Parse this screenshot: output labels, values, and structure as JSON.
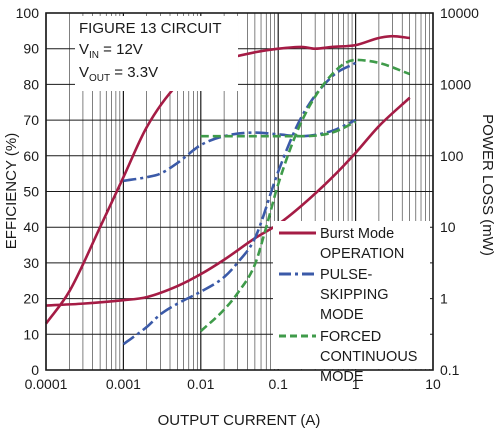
{
  "chart_data": {
    "type": "line",
    "xlabel": "OUTPUT CURRENT (A)",
    "ylabel": "EFFICIENCY (%)",
    "y2label": "POWER LOSS (mW)",
    "x_scale": "log",
    "xlim": [
      0.0001,
      10
    ],
    "ylim": [
      0,
      100
    ],
    "y2_scale": "log",
    "y2lim": [
      0.1,
      10000
    ],
    "x_ticks": [
      "0.0001",
      "0.001",
      "0.01",
      "0.1",
      "1",
      "10"
    ],
    "y_ticks": [
      "0",
      "10",
      "20",
      "30",
      "40",
      "50",
      "60",
      "70",
      "80",
      "90",
      "100"
    ],
    "y2_ticks": [
      "0.1",
      "1",
      "10",
      "100",
      "1000",
      "10000"
    ],
    "grid": true,
    "annotation": {
      "line1": "FIGURE 13 CIRCUIT",
      "vin_main": "V",
      "vin_sub": "IN",
      "vin_value": " = 12V",
      "vout_main": "V",
      "vout_sub": "OUT",
      "vout_value": " = 3.3V"
    },
    "legend": {
      "position": "bottom-right",
      "entries": [
        {
          "lines": [
            "Burst Mode",
            "OPERATION"
          ],
          "style": "solid",
          "color": "#a51c45"
        },
        {
          "lines": [
            "PULSE-",
            "SKIPPING",
            "MODE"
          ],
          "style": "dashdot",
          "color": "#3b5aa8"
        },
        {
          "lines": [
            "FORCED",
            "CONTINUOUS",
            "MODE"
          ],
          "style": "dashed",
          "color": "#3f9b4a"
        }
      ]
    },
    "series": [
      {
        "group": "efficiency",
        "axis": "left",
        "style": "solid",
        "color": "#a51c45",
        "x": [
          0.0001,
          0.0002,
          0.0005,
          0.001,
          0.002,
          0.005,
          0.01,
          0.02,
          0.05,
          0.1,
          0.2,
          0.3,
          0.5,
          1,
          2,
          3,
          5
        ],
        "y": [
          13,
          22,
          40,
          54,
          68,
          80,
          85,
          87,
          89,
          90,
          90.5,
          90,
          90.5,
          91,
          93,
          93.5,
          93
        ]
      },
      {
        "group": "efficiency",
        "axis": "left",
        "style": "dashdot",
        "color": "#3b5aa8",
        "x": [
          0.001,
          0.002,
          0.003,
          0.005,
          0.01,
          0.02,
          0.05,
          0.1,
          0.2,
          0.5,
          1
        ],
        "y": [
          53,
          54,
          55,
          58,
          63,
          65.5,
          66.5,
          66,
          65.5,
          67,
          70
        ]
      },
      {
        "group": "efficiency",
        "axis": "left",
        "style": "dashed",
        "color": "#3f9b4a",
        "x": [
          0.01,
          0.02,
          0.05,
          0.1,
          0.2,
          0.5,
          1
        ],
        "y": [
          65.5,
          65.5,
          65.5,
          65.5,
          65.5,
          66.5,
          69.5
        ]
      },
      {
        "group": "power_loss",
        "axis": "right",
        "style": "solid",
        "color": "#a51c45",
        "x": [
          0.0001,
          0.0003,
          0.001,
          0.002,
          0.005,
          0.01,
          0.02,
          0.05,
          0.1,
          0.2,
          0.5,
          1,
          2,
          5
        ],
        "y": [
          0.8,
          0.85,
          0.95,
          1.05,
          1.5,
          2.2,
          3.5,
          7,
          11,
          20,
          50,
          110,
          260,
          650
        ]
      },
      {
        "group": "power_loss",
        "axis": "right",
        "style": "dashdot",
        "color": "#3b5aa8",
        "x": [
          0.001,
          0.002,
          0.003,
          0.005,
          0.01,
          0.02,
          0.03,
          0.05,
          0.1,
          0.2,
          0.5,
          1
        ],
        "y": [
          0.23,
          0.4,
          0.6,
          0.85,
          1.25,
          2,
          3.2,
          7,
          60,
          350,
          1300,
          2000
        ]
      },
      {
        "group": "power_loss",
        "axis": "right",
        "style": "dashed",
        "color": "#3f9b4a",
        "x": [
          0.01,
          0.02,
          0.03,
          0.05,
          0.07,
          0.1,
          0.2,
          0.5,
          1,
          2,
          5
        ],
        "y": [
          0.35,
          0.7,
          1.2,
          3,
          10,
          40,
          300,
          1400,
          2200,
          2000,
          1400
        ]
      }
    ]
  }
}
